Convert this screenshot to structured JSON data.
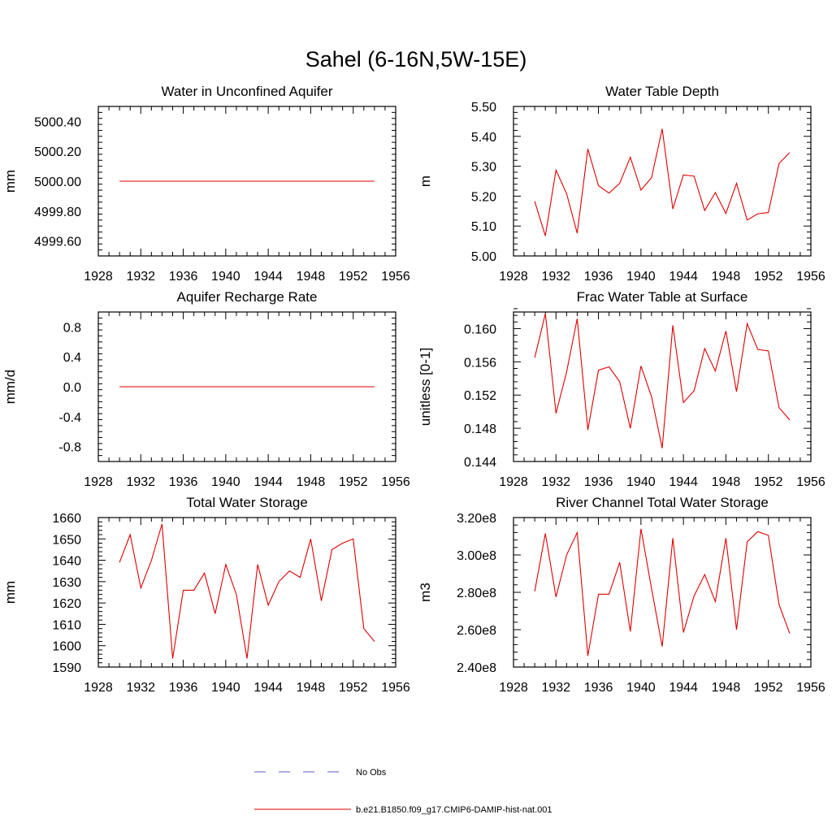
{
  "figure": {
    "title": "Sahel (6-16N,5W-15E)"
  },
  "legend": {
    "items": [
      {
        "label": "No Obs",
        "color": "#5a5ac8",
        "style": "dashed"
      },
      {
        "label": "b.e21.B1850.f09_g17.CMIP6-DAMIP-hist-nat.001",
        "color": "#e00000",
        "style": "solid"
      }
    ]
  },
  "chart_data": [
    {
      "type": "line",
      "title": "Water in Unconfined Aquifer",
      "ylabel": "mm",
      "xlim": [
        1928,
        1956
      ],
      "ylim": [
        4999.5,
        5000.5
      ],
      "xticks": [
        1928,
        1932,
        1936,
        1940,
        1944,
        1948,
        1952,
        1956
      ],
      "yticks": [
        4999.6,
        4999.8,
        5000.0,
        5000.2,
        5000.4
      ],
      "ytick_labels": [
        "4999.60",
        "4999.80",
        "5000.00",
        "5000.20",
        "5000.40"
      ],
      "series": [
        {
          "color": "#e00000",
          "x": [
            1930,
            1931,
            1932,
            1933,
            1934,
            1935,
            1936,
            1937,
            1938,
            1939,
            1940,
            1941,
            1942,
            1943,
            1944,
            1945,
            1946,
            1947,
            1948,
            1949,
            1950,
            1951,
            1952,
            1953,
            1954
          ],
          "y": [
            5000.0,
            5000.0,
            5000.0,
            5000.0,
            5000.0,
            5000.0,
            5000.0,
            5000.0,
            5000.0,
            5000.0,
            5000.0,
            5000.0,
            5000.0,
            5000.0,
            5000.0,
            5000.0,
            5000.0,
            5000.0,
            5000.0,
            5000.0,
            5000.0,
            5000.0,
            5000.0,
            5000.0,
            5000.0
          ]
        }
      ]
    },
    {
      "type": "line",
      "title": "Water Table Depth",
      "ylabel": "m",
      "xlim": [
        1928,
        1956
      ],
      "ylim": [
        5.0,
        5.5
      ],
      "xticks": [
        1928,
        1932,
        1936,
        1940,
        1944,
        1948,
        1952,
        1956
      ],
      "yticks": [
        5.0,
        5.1,
        5.2,
        5.3,
        5.4,
        5.5
      ],
      "ytick_labels": [
        "5.00",
        "5.10",
        "5.20",
        "5.30",
        "5.40",
        "5.50"
      ],
      "series": [
        {
          "color": "#e00000",
          "x": [
            1930,
            1931,
            1932,
            1933,
            1934,
            1935,
            1936,
            1937,
            1938,
            1939,
            1940,
            1941,
            1942,
            1943,
            1944,
            1945,
            1946,
            1947,
            1948,
            1949,
            1950,
            1951,
            1952,
            1953,
            1954
          ],
          "y": [
            5.183,
            5.067,
            5.287,
            5.208,
            5.076,
            5.358,
            5.235,
            5.21,
            5.243,
            5.33,
            5.22,
            5.262,
            5.425,
            5.157,
            5.271,
            5.267,
            5.152,
            5.212,
            5.142,
            5.243,
            5.12,
            5.141,
            5.145,
            5.309,
            5.346
          ]
        }
      ]
    },
    {
      "type": "line",
      "title": "Aquifer Recharge Rate",
      "ylabel": "mm/d",
      "xlim": [
        1928,
        1956
      ],
      "ylim": [
        -1.0,
        1.0
      ],
      "xticks": [
        1928,
        1932,
        1936,
        1940,
        1944,
        1948,
        1952,
        1956
      ],
      "yticks": [
        -0.8,
        -0.4,
        0.0,
        0.4,
        0.8
      ],
      "ytick_labels": [
        "-0.8",
        "-0.4",
        "0.0",
        "0.4",
        "0.8"
      ],
      "series": [
        {
          "color": "#e00000",
          "x": [
            1930,
            1931,
            1932,
            1933,
            1934,
            1935,
            1936,
            1937,
            1938,
            1939,
            1940,
            1941,
            1942,
            1943,
            1944,
            1945,
            1946,
            1947,
            1948,
            1949,
            1950,
            1951,
            1952,
            1953,
            1954
          ],
          "y": [
            0.0,
            0.0,
            0.0,
            0.0,
            0.0,
            0.0,
            0.0,
            0.0,
            0.0,
            0.0,
            0.0,
            0.0,
            0.0,
            0.0,
            0.0,
            0.0,
            0.0,
            0.0,
            0.0,
            0.0,
            0.0,
            0.0,
            0.0,
            0.0,
            0.0
          ]
        }
      ]
    },
    {
      "type": "line",
      "title": "Frac Water Table at Surface",
      "ylabel": "unitless [0-1]",
      "xlim": [
        1928,
        1956
      ],
      "ylim": [
        0.144,
        0.162
      ],
      "xticks": [
        1928,
        1932,
        1936,
        1940,
        1944,
        1948,
        1952,
        1956
      ],
      "yticks": [
        0.144,
        0.148,
        0.152,
        0.156,
        0.16
      ],
      "ytick_labels": [
        "0.144",
        "0.148",
        "0.152",
        "0.156",
        "0.160"
      ],
      "series": [
        {
          "color": "#e00000",
          "x": [
            1930,
            1931,
            1932,
            1933,
            1934,
            1935,
            1936,
            1937,
            1938,
            1939,
            1940,
            1941,
            1942,
            1943,
            1944,
            1945,
            1946,
            1947,
            1948,
            1949,
            1950,
            1951,
            1952,
            1953,
            1954
          ],
          "y": [
            0.1565,
            0.1618,
            0.1498,
            0.1548,
            0.1612,
            0.1478,
            0.155,
            0.1554,
            0.1536,
            0.148,
            0.1555,
            0.1518,
            0.1456,
            0.1604,
            0.1511,
            0.1525,
            0.1576,
            0.1549,
            0.1597,
            0.1524,
            0.1606,
            0.1575,
            0.1573,
            0.1505,
            0.149
          ]
        }
      ]
    },
    {
      "type": "line",
      "title": "Total Water Storage",
      "ylabel": "mm",
      "xlim": [
        1928,
        1956
      ],
      "ylim": [
        1590,
        1660
      ],
      "xticks": [
        1928,
        1932,
        1936,
        1940,
        1944,
        1948,
        1952,
        1956
      ],
      "yticks": [
        1590,
        1600,
        1610,
        1620,
        1630,
        1640,
        1650,
        1660
      ],
      "ytick_labels": [
        "1590",
        "1600",
        "1610",
        "1620",
        "1630",
        "1640",
        "1650",
        "1660"
      ],
      "series": [
        {
          "color": "#e00000",
          "x": [
            1930,
            1931,
            1932,
            1933,
            1934,
            1935,
            1936,
            1937,
            1938,
            1939,
            1940,
            1941,
            1942,
            1943,
            1944,
            1945,
            1946,
            1947,
            1948,
            1949,
            1950,
            1951,
            1952,
            1953,
            1954
          ],
          "y": [
            1639,
            1652,
            1627,
            1640,
            1657,
            1594,
            1626,
            1626,
            1634,
            1615,
            1638,
            1624,
            1594,
            1638,
            1619,
            1630,
            1635,
            1632,
            1650,
            1621,
            1645,
            1648,
            1650,
            1608,
            1602
          ]
        }
      ]
    },
    {
      "type": "line",
      "title": "River Channel Total Water Storage",
      "ylabel": "m3",
      "xlim": [
        1928,
        1956
      ],
      "ylim": [
        240000000,
        320000000
      ],
      "xticks": [
        1928,
        1932,
        1936,
        1940,
        1944,
        1948,
        1952,
        1956
      ],
      "yticks": [
        240000000,
        260000000,
        280000000,
        300000000,
        320000000
      ],
      "ytick_labels": [
        "2.40e8",
        "2.60e8",
        "2.80e8",
        "3.00e8",
        "3.20e8"
      ],
      "series": [
        {
          "color": "#e00000",
          "x": [
            1930,
            1931,
            1932,
            1933,
            1934,
            1935,
            1936,
            1937,
            1938,
            1939,
            1940,
            1941,
            1942,
            1943,
            1944,
            1945,
            1946,
            1947,
            1948,
            1949,
            1950,
            1951,
            1952,
            1953,
            1954
          ],
          "y": [
            280500000,
            311500000,
            277500000,
            300000000,
            312000000,
            246000000,
            279000000,
            279000000,
            296000000,
            259000000,
            314000000,
            282000000,
            251000000,
            309000000,
            258500000,
            278000000,
            289500000,
            275000000,
            309000000,
            260000000,
            307000000,
            312500000,
            310500000,
            273500000,
            258000000
          ]
        }
      ]
    }
  ]
}
